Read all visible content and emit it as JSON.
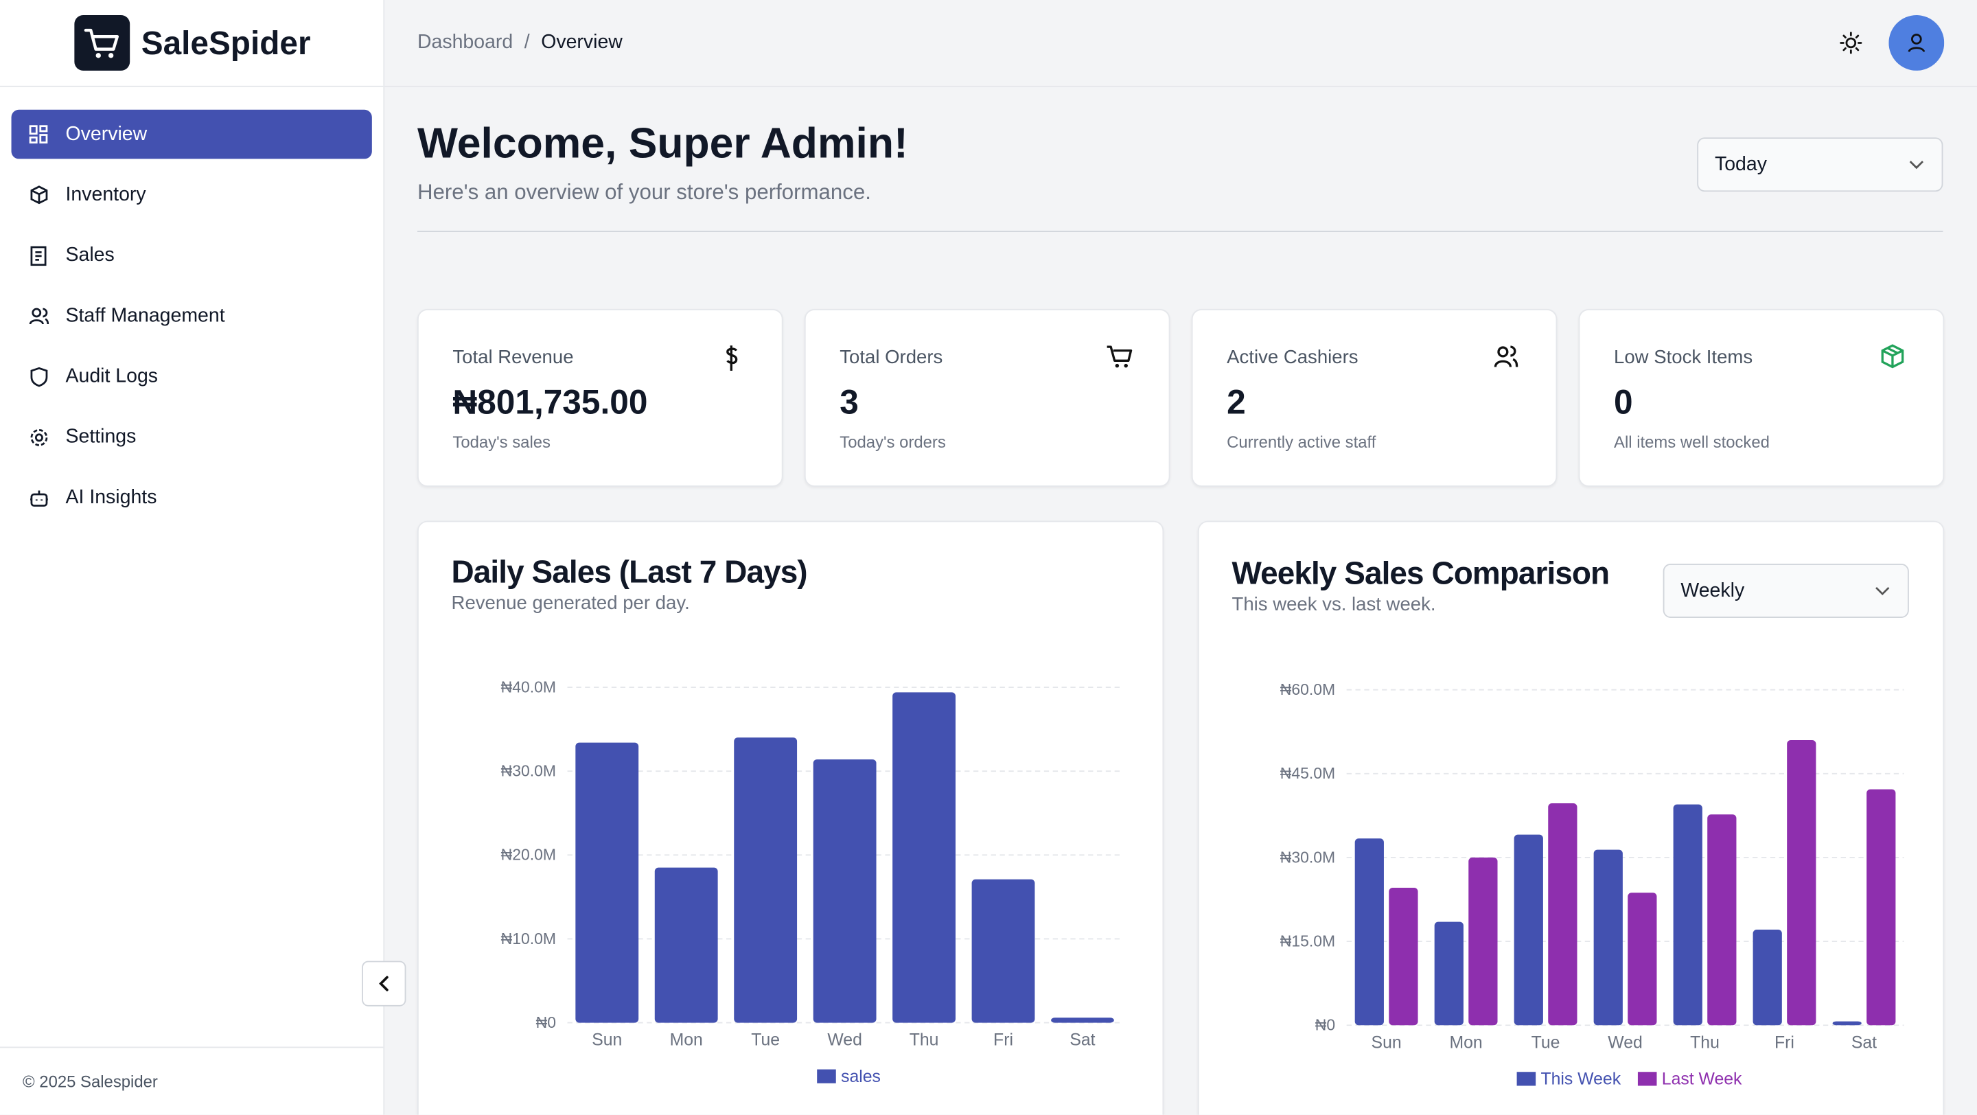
{
  "sidebar": {
    "brand": "SaleSpider",
    "nav": [
      "Overview",
      "Inventory",
      "Sales",
      "Staff Management",
      "Audit Logs",
      "Settings",
      "AI Insights"
    ],
    "footer": "© 2025 Salespider"
  },
  "header": {
    "breadcrumb": [
      "Dashboard",
      "Overview"
    ],
    "breadcrumb_separator": "/"
  },
  "welcome": {
    "title": "Welcome, Super Admin!",
    "subtitle": "Here's an overview of your store's performance.",
    "period": "Today"
  },
  "stats": [
    {
      "label": "Total Revenue",
      "value": "₦801,735.00",
      "note": "Today's sales"
    },
    {
      "label": "Total Orders",
      "value": "3",
      "note": "Today's orders"
    },
    {
      "label": "Active Cashiers",
      "value": "2",
      "note": "Currently active staff"
    },
    {
      "label": "Low Stock Items",
      "value": "0",
      "note": "All items well stocked"
    }
  ],
  "chart_data": [
    {
      "type": "bar",
      "title": "Daily Sales (Last 7 Days)",
      "subtitle": "Revenue generated per day.",
      "categories": [
        "Sun",
        "Mon",
        "Tue",
        "Wed",
        "Thu",
        "Fri",
        "Sat"
      ],
      "series": [
        {
          "name": "sales",
          "color": "#4351b0",
          "values": [
            33400000,
            18500000,
            34000000,
            31400000,
            39400000,
            17100000,
            600000
          ]
        }
      ],
      "ylim": [
        0,
        40000000
      ],
      "yticks": [
        {
          "value": 0,
          "label": "₦0"
        },
        {
          "value": 10000000,
          "label": "₦10.0M"
        },
        {
          "value": 20000000,
          "label": "₦20.0M"
        },
        {
          "value": 30000000,
          "label": "₦30.0M"
        },
        {
          "value": 40000000,
          "label": "₦40.0M"
        }
      ],
      "grid": true
    },
    {
      "type": "bar",
      "title": "Weekly Sales Comparison",
      "subtitle": "This week vs. last week.",
      "dropdown": "Weekly",
      "categories": [
        "Sun",
        "Mon",
        "Tue",
        "Wed",
        "Thu",
        "Fri",
        "Sat"
      ],
      "series": [
        {
          "name": "This Week",
          "color": "#4351b0",
          "values": [
            33400000,
            18500000,
            34100000,
            31400000,
            39500000,
            17100000,
            700000
          ]
        },
        {
          "name": "Last Week",
          "color": "#8e2fae",
          "values": [
            24600000,
            30000000,
            39700000,
            23700000,
            37700000,
            51000000,
            42200000
          ]
        }
      ],
      "ylim": [
        0,
        60000000
      ],
      "yticks": [
        {
          "value": 0,
          "label": "₦0"
        },
        {
          "value": 15000000,
          "label": "₦15.0M"
        },
        {
          "value": 30000000,
          "label": "₦30.0M"
        },
        {
          "value": 45000000,
          "label": "₦45.0M"
        },
        {
          "value": 60000000,
          "label": "₦60.0M"
        }
      ],
      "grid": true
    }
  ]
}
